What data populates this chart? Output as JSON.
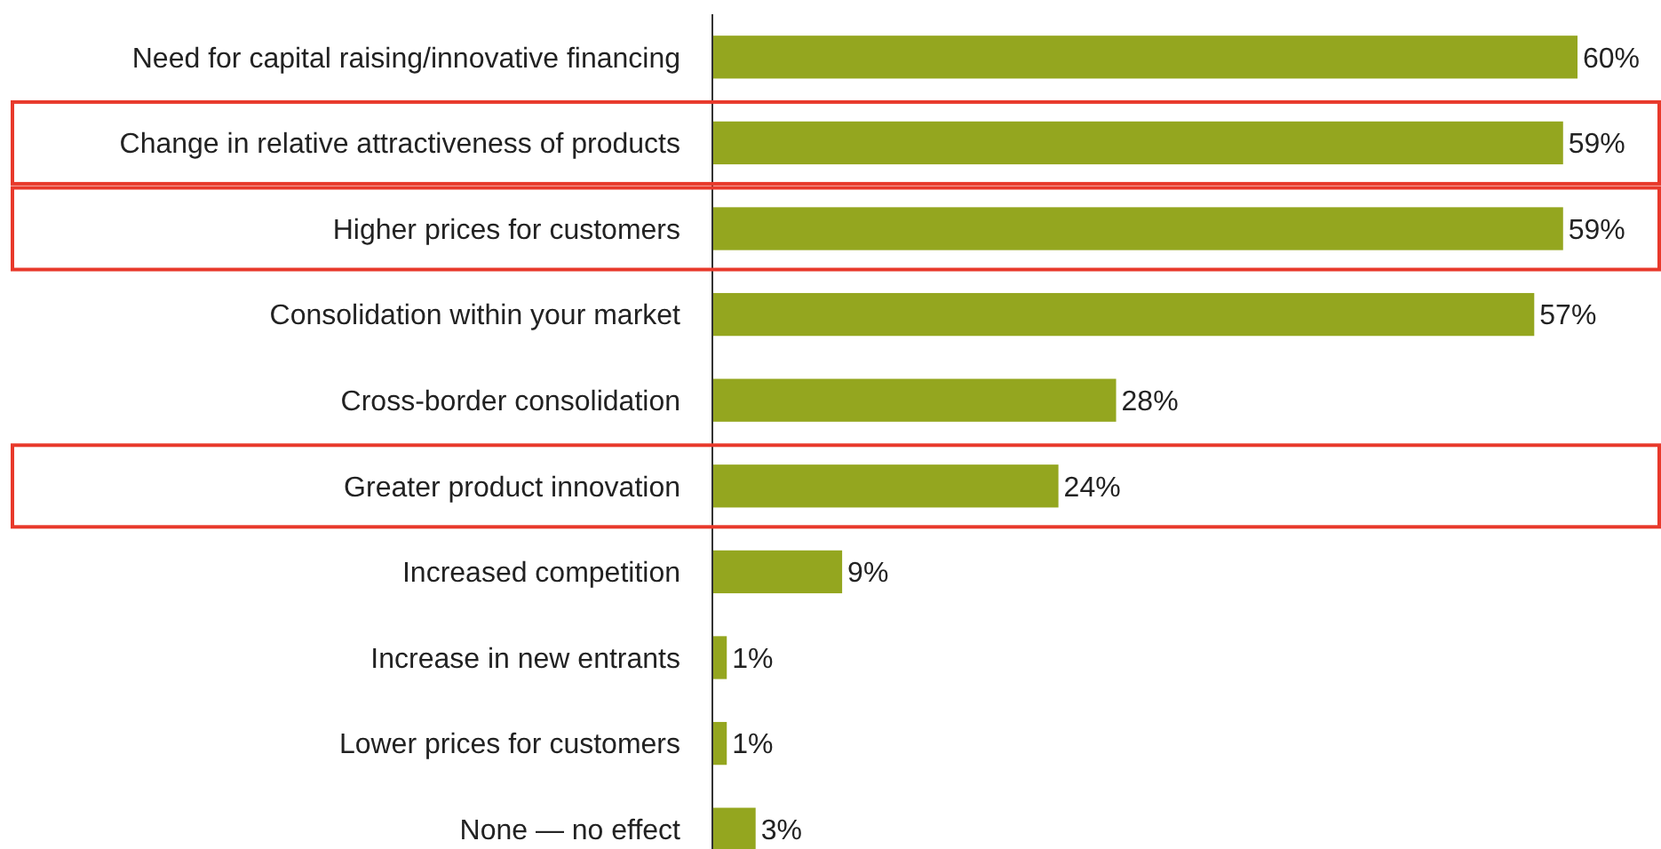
{
  "chart_data": {
    "type": "bar",
    "orientation": "horizontal",
    "categories": [
      "Need for capital raising/innovative financing",
      "Change in relative attractiveness of products",
      "Higher prices for customers",
      "Consolidation within your market",
      "Cross-border consolidation",
      "Greater product innovation",
      "Increased competition",
      "Increase in new entrants",
      "Lower prices for customers",
      "None — no effect"
    ],
    "values": [
      60,
      59,
      59,
      57,
      28,
      24,
      9,
      1,
      1,
      3
    ],
    "value_labels": [
      "60%",
      "59%",
      "59%",
      "57%",
      "28%",
      "24%",
      "9%",
      "1%",
      "1%",
      "3%"
    ],
    "color": "#94a61f"
  }
}
